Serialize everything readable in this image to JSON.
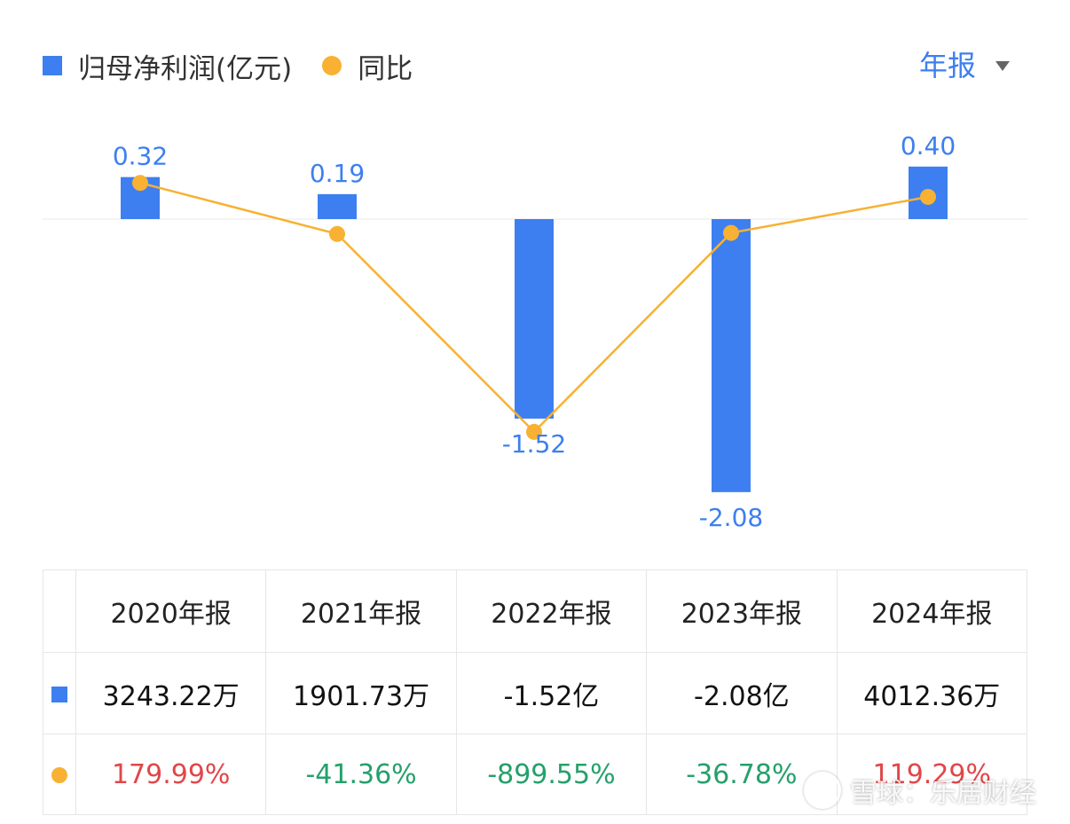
{
  "legend": {
    "bar_label": "归母净利润(亿元)",
    "line_label": "同比"
  },
  "period_selector": {
    "label": "年报"
  },
  "colors": {
    "bar": "#3d7ff0",
    "line": "#f8b133",
    "positive": "#e0474a",
    "negative": "#25a06b"
  },
  "chart_data": {
    "type": "bar",
    "categories": [
      "2020年报",
      "2021年报",
      "2022年报",
      "2023年报",
      "2024年报"
    ],
    "series": [
      {
        "name": "归母净利润(亿元)",
        "type": "bar",
        "values": [
          0.32,
          0.19,
          -1.52,
          -2.08,
          0.4
        ],
        "labels": [
          "0.32",
          "0.19",
          "-1.52",
          "-2.08",
          "0.40"
        ]
      },
      {
        "name": "同比",
        "type": "line",
        "values": [
          179.99,
          -41.36,
          -899.55,
          -36.78,
          119.29
        ]
      }
    ],
    "grid": false,
    "legend_position": "top-left"
  },
  "table": {
    "headers": [
      "2020年报",
      "2021年报",
      "2022年报",
      "2023年报",
      "2024年报"
    ],
    "net_profit": [
      "3243.22万",
      "1901.73万",
      "-1.52亿",
      "-2.08亿",
      "4012.36万"
    ],
    "yoy": [
      {
        "text": "179.99%",
        "sign": "pos"
      },
      {
        "text": "-41.36%",
        "sign": "neg"
      },
      {
        "text": "-899.55%",
        "sign": "neg"
      },
      {
        "text": "-36.78%",
        "sign": "neg"
      },
      {
        "text": "119.29%",
        "sign": "pos"
      }
    ]
  },
  "watermark": {
    "text": "雪球：乐居财经"
  }
}
